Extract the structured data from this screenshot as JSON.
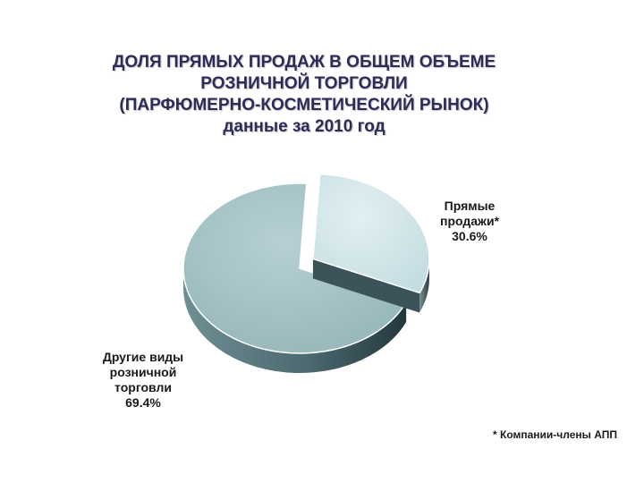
{
  "chart_data": {
    "type": "pie",
    "title_lines": [
      "ДОЛЯ ПРЯМЫХ ПРОДАЖ В ОБЩЕМ ОБЪЕМЕ",
      "РОЗНИЧНОЙ ТОРГОВЛИ",
      "(ПАРФЮМЕРНО-КОСМЕТИЧЕСКИЙ РЫНОК)"
    ],
    "subtitle": "данные за 2010 год",
    "slices": [
      {
        "label_lines": [
          "Прямые",
          "продажи*"
        ],
        "value": 30.6,
        "value_label": "30.6%",
        "color": "#cfe6ea",
        "exploded": true
      },
      {
        "label_lines": [
          "Другие виды",
          "розничной",
          "торговли"
        ],
        "value": 69.4,
        "value_label": "69.4%",
        "color": "#a6c4c8",
        "exploded": false
      }
    ],
    "style": "3d-exploded-pie",
    "footnote": "* Компании-члены АПП"
  }
}
